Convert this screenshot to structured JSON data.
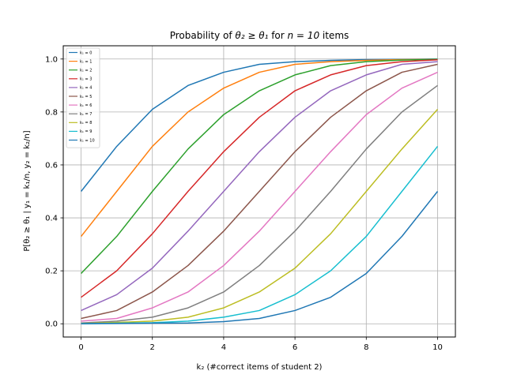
{
  "figure": {
    "title_prefix": "Probability of ",
    "title_math": "θ₂ ≥ θ₁",
    "title_mid": " for ",
    "title_math2": "n = 10",
    "title_suffix": " items",
    "xlabel": "k₂ (#correct items of student 2)",
    "ylabel": "P[θ₂ ≥ θ₁ | y₁ = k₁/n, y₂ = k₂/n]"
  },
  "chart_data": {
    "type": "line",
    "title": "Probability of θ₂ ≥ θ₁ for n = 10 items",
    "xlabel": "k₂ (#correct items of student 2)",
    "ylabel": "P[θ₂ ≥ θ₁ | y₁ = k₁/n, y₂ = k₂/n]",
    "x": [
      0,
      1,
      2,
      3,
      4,
      5,
      6,
      7,
      8,
      9,
      10
    ],
    "xlim": [
      -0.5,
      10.5
    ],
    "ylim": [
      -0.05,
      1.05
    ],
    "xticks": [
      0,
      2,
      4,
      6,
      8,
      10
    ],
    "xtick_labels": [
      "0",
      "2",
      "4",
      "6",
      "8",
      "10"
    ],
    "yticks": [
      0.0,
      0.2,
      0.4,
      0.6,
      0.8,
      1.0
    ],
    "ytick_labels": [
      "0.0",
      "0.2",
      "0.4",
      "0.6",
      "0.8",
      "1.0"
    ],
    "grid": true,
    "legend_position": "upper-left",
    "series": [
      {
        "name": "k₁ = 0",
        "color": "#1f77b4",
        "values": [
          0.5,
          0.67,
          0.81,
          0.9,
          0.95,
          0.98,
          0.99,
          0.995,
          0.998,
          0.999,
          1.0
        ]
      },
      {
        "name": "k₁ = 1",
        "color": "#ff7f0e",
        "values": [
          0.33,
          0.5,
          0.67,
          0.8,
          0.89,
          0.95,
          0.98,
          0.99,
          0.995,
          0.998,
          0.999
        ]
      },
      {
        "name": "k₁ = 2",
        "color": "#2ca02c",
        "values": [
          0.19,
          0.33,
          0.5,
          0.66,
          0.79,
          0.88,
          0.94,
          0.975,
          0.99,
          0.996,
          0.999
        ]
      },
      {
        "name": "k₁ = 3",
        "color": "#d62728",
        "values": [
          0.1,
          0.2,
          0.34,
          0.5,
          0.65,
          0.78,
          0.88,
          0.94,
          0.975,
          0.99,
          0.997
        ]
      },
      {
        "name": "k₁ = 4",
        "color": "#9467bd",
        "values": [
          0.05,
          0.11,
          0.21,
          0.35,
          0.5,
          0.65,
          0.78,
          0.88,
          0.94,
          0.98,
          0.99
        ]
      },
      {
        "name": "k₁ = 5",
        "color": "#8c564b",
        "values": [
          0.02,
          0.05,
          0.12,
          0.22,
          0.35,
          0.5,
          0.65,
          0.78,
          0.88,
          0.95,
          0.98
        ]
      },
      {
        "name": "k₁ = 6",
        "color": "#e377c2",
        "values": [
          0.01,
          0.02,
          0.06,
          0.12,
          0.22,
          0.35,
          0.5,
          0.65,
          0.79,
          0.89,
          0.95
        ]
      },
      {
        "name": "k₁ = 7",
        "color": "#7f7f7f",
        "values": [
          0.003,
          0.01,
          0.025,
          0.06,
          0.12,
          0.22,
          0.35,
          0.5,
          0.66,
          0.8,
          0.9
        ]
      },
      {
        "name": "k₁ = 8",
        "color": "#bcbd22",
        "values": [
          0.001,
          0.005,
          0.01,
          0.025,
          0.06,
          0.12,
          0.21,
          0.34,
          0.5,
          0.66,
          0.81
        ]
      },
      {
        "name": "k₁ = 9",
        "color": "#17becf",
        "values": [
          0.0005,
          0.002,
          0.004,
          0.01,
          0.025,
          0.05,
          0.11,
          0.2,
          0.33,
          0.5,
          0.67
        ]
      },
      {
        "name": "k₁ = 10",
        "color": "#1f77b4",
        "values": [
          0.0,
          0.001,
          0.002,
          0.003,
          0.008,
          0.02,
          0.05,
          0.1,
          0.19,
          0.33,
          0.5
        ]
      }
    ]
  }
}
